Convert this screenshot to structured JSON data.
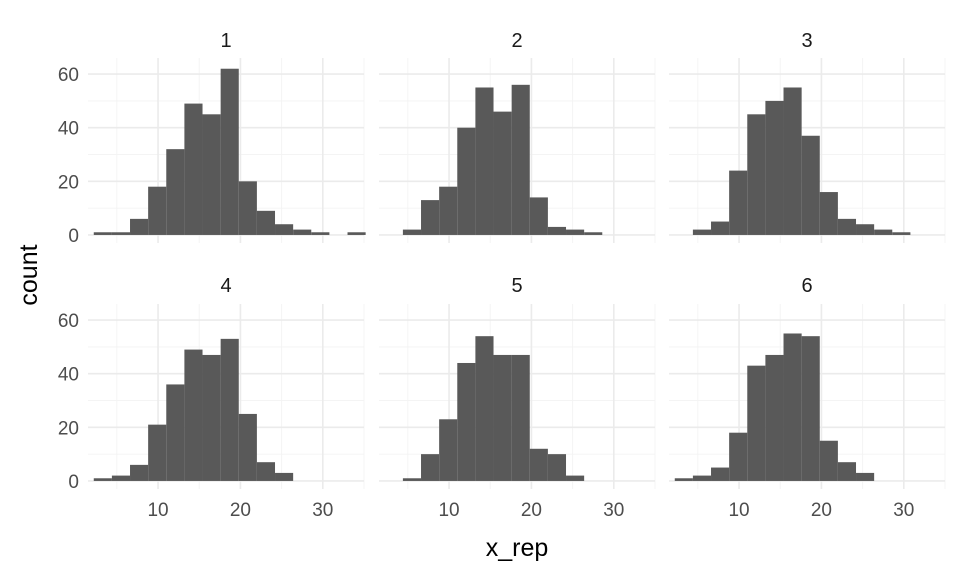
{
  "chart_data": {
    "type": "bar",
    "subtype": "faceted-histogram",
    "theme": "minimal",
    "grid": true,
    "legend": "none",
    "bar_color": "#595959",
    "grid_color": "#ebebeb",
    "xlabel": "x_rep",
    "ylabel": "count",
    "xlim": [
      1.5,
      35
    ],
    "ylim": [
      -3,
      66
    ],
    "x_ticks": [
      10,
      20,
      30
    ],
    "y_ticks": [
      0,
      20,
      40,
      60
    ],
    "bin_width": 2.2,
    "panels": [
      {
        "label": "1",
        "bins": [
          {
            "x": 3.3,
            "count": 1
          },
          {
            "x": 5.5,
            "count": 1
          },
          {
            "x": 7.7,
            "count": 6
          },
          {
            "x": 9.9,
            "count": 18
          },
          {
            "x": 12.1,
            "count": 32
          },
          {
            "x": 14.3,
            "count": 49
          },
          {
            "x": 16.5,
            "count": 45
          },
          {
            "x": 18.7,
            "count": 62
          },
          {
            "x": 20.9,
            "count": 20
          },
          {
            "x": 23.1,
            "count": 9
          },
          {
            "x": 25.3,
            "count": 4
          },
          {
            "x": 27.5,
            "count": 2
          },
          {
            "x": 29.7,
            "count": 1
          },
          {
            "x": 31.9,
            "count": 0
          },
          {
            "x": 34.1,
            "count": 1
          }
        ]
      },
      {
        "label": "2",
        "bins": [
          {
            "x": 5.5,
            "count": 2
          },
          {
            "x": 7.7,
            "count": 13
          },
          {
            "x": 9.9,
            "count": 18
          },
          {
            "x": 12.1,
            "count": 40
          },
          {
            "x": 14.3,
            "count": 55
          },
          {
            "x": 16.5,
            "count": 46
          },
          {
            "x": 18.7,
            "count": 56
          },
          {
            "x": 20.9,
            "count": 14
          },
          {
            "x": 23.1,
            "count": 3
          },
          {
            "x": 25.3,
            "count": 2
          },
          {
            "x": 27.5,
            "count": 1
          }
        ]
      },
      {
        "label": "3",
        "bins": [
          {
            "x": 5.5,
            "count": 2
          },
          {
            "x": 7.7,
            "count": 5
          },
          {
            "x": 9.9,
            "count": 24
          },
          {
            "x": 12.1,
            "count": 45
          },
          {
            "x": 14.3,
            "count": 50
          },
          {
            "x": 16.5,
            "count": 55
          },
          {
            "x": 18.7,
            "count": 37
          },
          {
            "x": 20.9,
            "count": 16
          },
          {
            "x": 23.1,
            "count": 6
          },
          {
            "x": 25.3,
            "count": 4
          },
          {
            "x": 27.5,
            "count": 2
          },
          {
            "x": 29.7,
            "count": 1
          }
        ]
      },
      {
        "label": "4",
        "bins": [
          {
            "x": 3.3,
            "count": 1
          },
          {
            "x": 5.5,
            "count": 2
          },
          {
            "x": 7.7,
            "count": 6
          },
          {
            "x": 9.9,
            "count": 21
          },
          {
            "x": 12.1,
            "count": 36
          },
          {
            "x": 14.3,
            "count": 49
          },
          {
            "x": 16.5,
            "count": 47
          },
          {
            "x": 18.7,
            "count": 53
          },
          {
            "x": 20.9,
            "count": 25
          },
          {
            "x": 23.1,
            "count": 7
          },
          {
            "x": 25.3,
            "count": 3
          }
        ]
      },
      {
        "label": "5",
        "bins": [
          {
            "x": 5.5,
            "count": 1
          },
          {
            "x": 7.7,
            "count": 10
          },
          {
            "x": 9.9,
            "count": 23
          },
          {
            "x": 12.1,
            "count": 44
          },
          {
            "x": 14.3,
            "count": 54
          },
          {
            "x": 16.5,
            "count": 47
          },
          {
            "x": 18.7,
            "count": 47
          },
          {
            "x": 20.9,
            "count": 12
          },
          {
            "x": 23.1,
            "count": 10
          },
          {
            "x": 25.3,
            "count": 2
          }
        ]
      },
      {
        "label": "6",
        "bins": [
          {
            "x": 3.3,
            "count": 1
          },
          {
            "x": 5.5,
            "count": 2
          },
          {
            "x": 7.7,
            "count": 5
          },
          {
            "x": 9.9,
            "count": 18
          },
          {
            "x": 12.1,
            "count": 43
          },
          {
            "x": 14.3,
            "count": 47
          },
          {
            "x": 16.5,
            "count": 55
          },
          {
            "x": 18.7,
            "count": 54
          },
          {
            "x": 20.9,
            "count": 15
          },
          {
            "x": 23.1,
            "count": 7
          },
          {
            "x": 25.3,
            "count": 3
          }
        ]
      }
    ]
  }
}
